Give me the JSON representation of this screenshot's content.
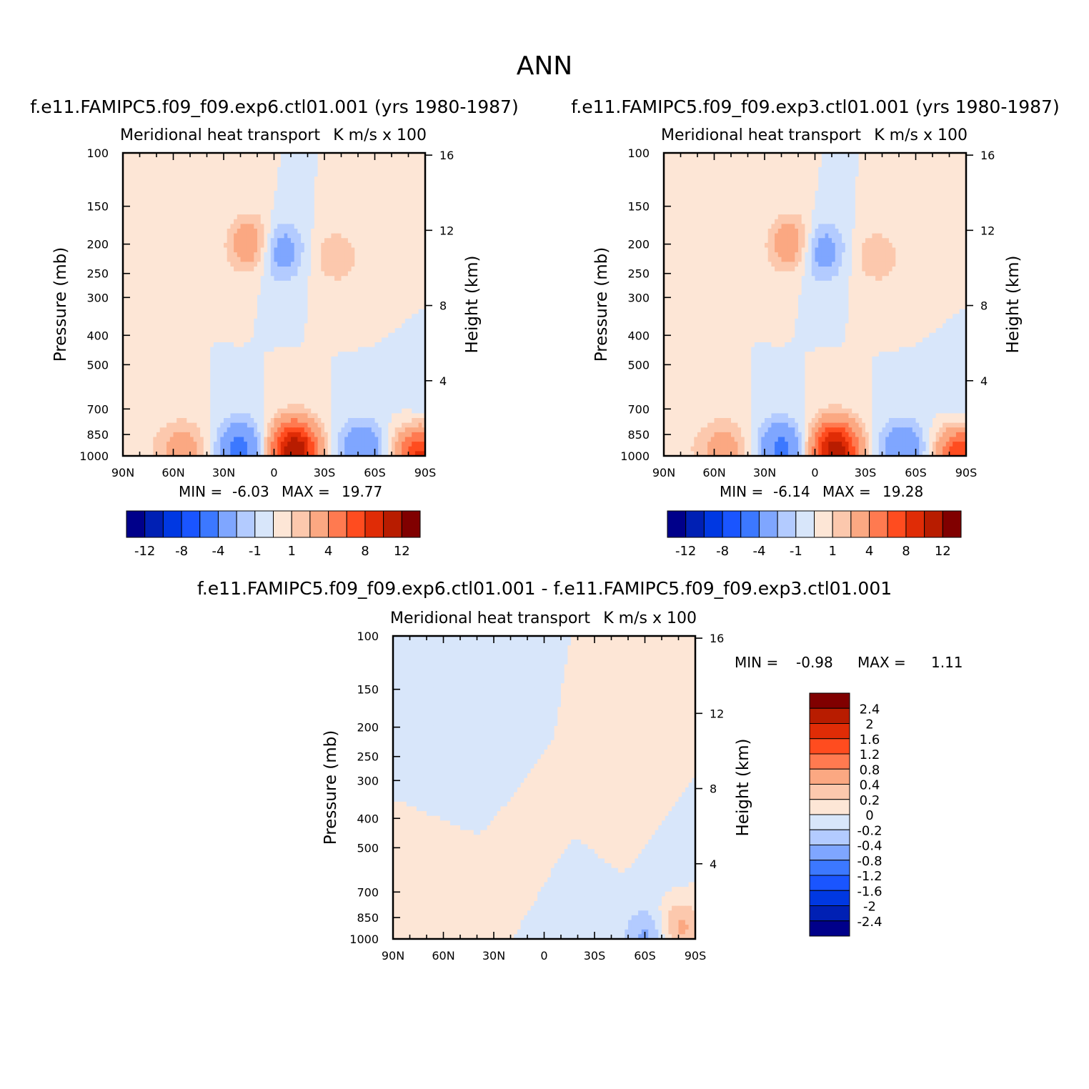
{
  "figure": {
    "title": "ANN"
  },
  "colors": {
    "main_levels": [
      "#00008a",
      "#0020b4",
      "#0038e2",
      "#1a55ff",
      "#3c78ff",
      "#7fa6ff",
      "#b3cbff",
      "#d8e6fa",
      "#fde6d6",
      "#fcc8ad",
      "#fba882",
      "#ff7a50",
      "#ff4c1f",
      "#e02c06",
      "#b81c00",
      "#800000"
    ],
    "diff_levels": [
      "#00008a",
      "#0020b4",
      "#0038e2",
      "#1a55ff",
      "#3c78ff",
      "#7fa6ff",
      "#b3cbff",
      "#d8e6fa",
      "#fde6d6",
      "#fcc8ad",
      "#fba882",
      "#ff7a50",
      "#ff4c1f",
      "#e02c06",
      "#b81c00",
      "#800000"
    ]
  },
  "chart_data": [
    {
      "type": "heatmap",
      "case": "f.e11.FAMIPC5.f09_f09.exp6.ctl01.001 (yrs 1980-1987)",
      "title": "Meridional heat transport",
      "units": "K m/s x 100",
      "ylabel": "Pressure (mb)",
      "ylabel_right": "Height (km)",
      "x_ticks": [
        "90N",
        "60N",
        "30N",
        "0",
        "30S",
        "60S",
        "90S"
      ],
      "y_ticks": [
        100,
        150,
        200,
        250,
        300,
        400,
        500,
        700,
        850,
        1000
      ],
      "height_ticks": [
        16,
        12,
        8,
        4
      ],
      "min_label": "MIN =",
      "min_value": "-6.03",
      "max_label": "MAX =",
      "max_value": "19.77",
      "colorbar_labels": [
        "-12",
        "-8",
        "-4",
        "-1",
        "1",
        "4",
        "8",
        "12"
      ],
      "blobs": [
        {
          "lat": 77,
          "p": 920,
          "v": 0.6
        },
        {
          "lat": 54,
          "p": 950,
          "v": 2.8
        },
        {
          "lat": 20,
          "p": 950,
          "v": -4.8
        },
        {
          "lat": -12,
          "p": 960,
          "v": 12
        },
        {
          "lat": -52,
          "p": 955,
          "v": -3.8
        },
        {
          "lat": -87,
          "p": 980,
          "v": 9
        },
        {
          "lat": -88,
          "p": 800,
          "v": -1.5
        },
        {
          "lat": 13,
          "p": 200,
          "v": 3.8
        },
        {
          "lat": -3,
          "p": 210,
          "v": -3.5
        },
        {
          "lat": -37,
          "p": 220,
          "v": 1.8
        }
      ]
    },
    {
      "type": "heatmap",
      "case": "f.e11.FAMIPC5.f09_f09.exp3.ctl01.001 (yrs 1980-1987)",
      "title": "Meridional heat transport",
      "units": "K m/s x 100",
      "ylabel": "Pressure (mb)",
      "ylabel_right": "Height (km)",
      "x_ticks": [
        "90N",
        "60N",
        "30N",
        "0",
        "30S",
        "60S",
        "90S"
      ],
      "y_ticks": [
        100,
        150,
        200,
        250,
        300,
        400,
        500,
        700,
        850,
        1000
      ],
      "height_ticks": [
        16,
        12,
        8,
        4
      ],
      "min_label": "MIN =",
      "min_value": "-6.14",
      "max_label": "MAX =",
      "max_value": "19.28",
      "colorbar_labels": [
        "-12",
        "-8",
        "-4",
        "-1",
        "1",
        "4",
        "8",
        "12"
      ],
      "blobs": [
        {
          "lat": 77,
          "p": 920,
          "v": 0.6
        },
        {
          "lat": 54,
          "p": 950,
          "v": 2.9
        },
        {
          "lat": 20,
          "p": 950,
          "v": -4.6
        },
        {
          "lat": -12,
          "p": 960,
          "v": 11.5
        },
        {
          "lat": -52,
          "p": 955,
          "v": -4
        },
        {
          "lat": -87,
          "p": 980,
          "v": 8.5
        },
        {
          "lat": -88,
          "p": 800,
          "v": -1.5
        },
        {
          "lat": 13,
          "p": 200,
          "v": 3.8
        },
        {
          "lat": -3,
          "p": 210,
          "v": -3.5
        },
        {
          "lat": -37,
          "p": 220,
          "v": 1.8
        }
      ]
    },
    {
      "type": "heatmap",
      "case": "f.e11.FAMIPC5.f09_f09.exp6.ctl01.001 - f.e11.FAMIPC5.f09_f09.exp3.ctl01.001",
      "title": "Meridional heat transport",
      "units": "K m/s x 100",
      "ylabel": "Pressure (mb)",
      "ylabel_right": "Height (km)",
      "x_ticks": [
        "90N",
        "60N",
        "30N",
        "0",
        "30S",
        "60S",
        "90S"
      ],
      "y_ticks": [
        100,
        150,
        200,
        250,
        300,
        400,
        500,
        700,
        850,
        1000
      ],
      "height_ticks": [
        16,
        12,
        8,
        4
      ],
      "min_label": "MIN =",
      "min_value": "-0.98",
      "max_label": "MAX =",
      "max_value": "1.11",
      "colorbar_labels": [
        "2.4",
        "2",
        "1.6",
        "1.2",
        "0.8",
        "0.4",
        "0.2",
        "0",
        "-0.2",
        "-0.4",
        "-0.8",
        "-1.2",
        "-1.6",
        "-2",
        "-2.4"
      ],
      "blobs": [
        {
          "lat": 60,
          "p": 600,
          "v": 0.12
        },
        {
          "lat": 45,
          "p": 300,
          "v": -0.1
        },
        {
          "lat": 10,
          "p": 500,
          "v": 0.1
        },
        {
          "lat": -20,
          "p": 700,
          "v": -0.1
        },
        {
          "lat": -45,
          "p": 400,
          "v": 0.12
        },
        {
          "lat": -75,
          "p": 600,
          "v": -0.1
        },
        {
          "lat": -80,
          "p": 920,
          "v": 0.5
        },
        {
          "lat": -62,
          "p": 980,
          "v": -0.5
        }
      ]
    }
  ]
}
